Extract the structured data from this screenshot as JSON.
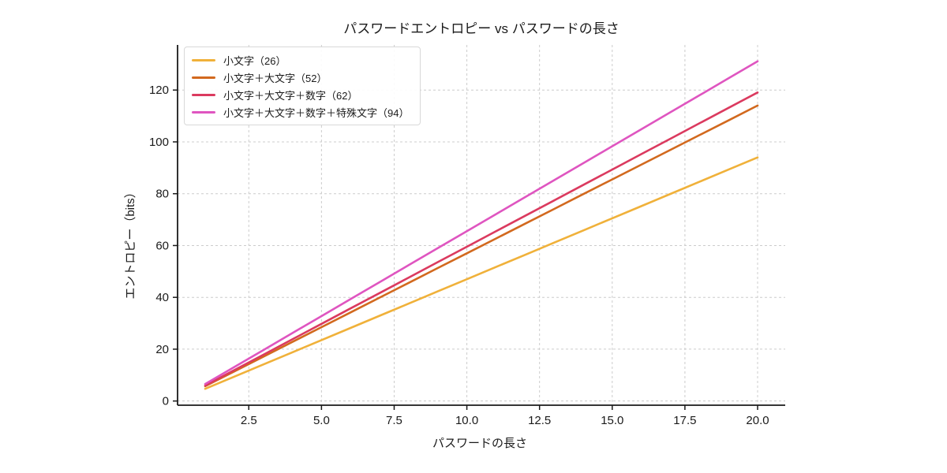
{
  "chart_data": {
    "type": "line",
    "title": "パスワードエントロピー vs パスワードの長さ",
    "xlabel": "パスワードの長さ",
    "ylabel": "エントロピー（bits）",
    "x": [
      1,
      2,
      3,
      4,
      5,
      6,
      7,
      8,
      9,
      10,
      11,
      12,
      13,
      14,
      15,
      16,
      17,
      18,
      19,
      20
    ],
    "series": [
      {
        "name": "小文字（26）",
        "charset_size": 26,
        "color": "#F0B13A",
        "values": [
          4.7,
          9.4,
          14.1,
          18.8,
          23.5,
          28.2,
          32.9,
          37.6,
          42.3,
          47.0,
          51.7,
          56.41,
          61.11,
          65.81,
          70.51,
          75.21,
          79.91,
          84.61,
          89.31,
          94.01
        ]
      },
      {
        "name": "小文字＋大文字（52）",
        "charset_size": 52,
        "color": "#D2691E",
        "values": [
          5.7,
          11.4,
          17.1,
          22.8,
          28.5,
          34.2,
          39.9,
          45.6,
          51.3,
          57.0,
          62.7,
          68.41,
          74.11,
          79.81,
          85.51,
          91.21,
          96.91,
          102.61,
          108.31,
          114.01
        ]
      },
      {
        "name": "小文字＋大文字＋数字（62）",
        "charset_size": 62,
        "color": "#DB3A5F",
        "values": [
          5.95,
          11.91,
          17.86,
          23.82,
          29.77,
          35.73,
          41.68,
          47.63,
          53.59,
          59.54,
          65.5,
          71.45,
          77.4,
          83.36,
          89.31,
          95.27,
          101.22,
          107.18,
          113.13,
          119.08
        ]
      },
      {
        "name": "小文字＋大文字＋数字＋特殊文字（94）",
        "charset_size": 94,
        "color": "#DF55C0",
        "values": [
          6.55,
          13.11,
          19.66,
          26.22,
          32.77,
          39.33,
          45.88,
          52.44,
          58.99,
          65.55,
          72.1,
          78.66,
          85.21,
          91.76,
          98.32,
          104.87,
          111.43,
          117.98,
          124.54,
          131.09
        ]
      }
    ],
    "xticks": [
      2.5,
      5.0,
      7.5,
      10.0,
      12.5,
      15.0,
      17.5,
      20.0
    ],
    "xtick_labels": [
      "2.5",
      "5.0",
      "7.5",
      "10.0",
      "12.5",
      "15.0",
      "17.5",
      "20.0"
    ],
    "yticks": [
      0,
      20,
      40,
      60,
      80,
      100,
      120
    ],
    "ytick_labels": [
      "0",
      "20",
      "40",
      "60",
      "80",
      "100",
      "120"
    ],
    "xlim": [
      0.05,
      20.95
    ],
    "ylim": [
      -1.62,
      137.41
    ],
    "grid": true,
    "grid_style": "dashed",
    "legend_position": "upper-left"
  },
  "style": {
    "grid_color": "#cccccc",
    "spine_color": "#1a1a1a",
    "background_color": "#ffffff",
    "line_width": 2.6
  }
}
